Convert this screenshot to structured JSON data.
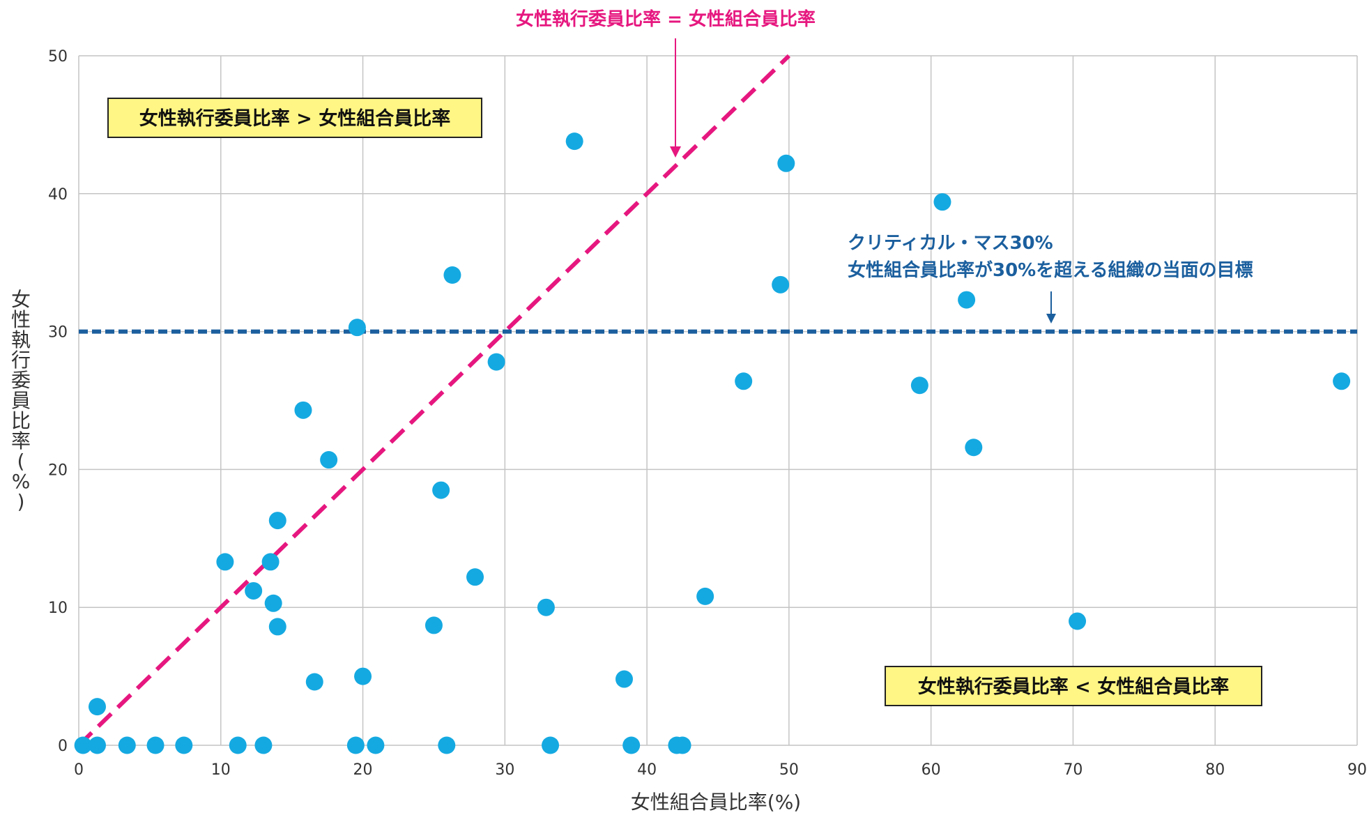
{
  "chart_data": {
    "type": "scatter",
    "title": "",
    "xlabel": "女性組合員比率(%)",
    "ylabel": "女性執行委員比率(%)",
    "xlim": [
      0,
      90
    ],
    "ylim": [
      0,
      50
    ],
    "x_ticks": [
      0,
      10,
      20,
      30,
      40,
      50,
      60,
      70,
      80,
      90
    ],
    "y_ticks": [
      0,
      10,
      20,
      30,
      40,
      50
    ],
    "grid": true,
    "colors": {
      "points": "#15a9e1",
      "diagonal": "#e6177f",
      "critical_mass": "#1b5f9e",
      "box_fill": "#fff685"
    },
    "points": [
      {
        "x": 0.3,
        "y": 0
      },
      {
        "x": 1.3,
        "y": 0
      },
      {
        "x": 1.3,
        "y": 2.8
      },
      {
        "x": 3.4,
        "y": 0
      },
      {
        "x": 5.4,
        "y": 0
      },
      {
        "x": 7.4,
        "y": 0
      },
      {
        "x": 10.3,
        "y": 13.3
      },
      {
        "x": 11.2,
        "y": 0
      },
      {
        "x": 12.3,
        "y": 11.2
      },
      {
        "x": 13.0,
        "y": 0
      },
      {
        "x": 13.5,
        "y": 13.3
      },
      {
        "x": 13.7,
        "y": 10.3
      },
      {
        "x": 14.0,
        "y": 16.3
      },
      {
        "x": 14.0,
        "y": 8.6
      },
      {
        "x": 15.8,
        "y": 24.3
      },
      {
        "x": 16.6,
        "y": 4.6
      },
      {
        "x": 17.6,
        "y": 20.7
      },
      {
        "x": 19.5,
        "y": 0
      },
      {
        "x": 19.6,
        "y": 30.3
      },
      {
        "x": 20.0,
        "y": 5.0
      },
      {
        "x": 20.9,
        "y": 0
      },
      {
        "x": 25.0,
        "y": 8.7
      },
      {
        "x": 25.5,
        "y": 18.5
      },
      {
        "x": 25.9,
        "y": 0
      },
      {
        "x": 26.3,
        "y": 34.1
      },
      {
        "x": 27.9,
        "y": 12.2
      },
      {
        "x": 29.4,
        "y": 27.8
      },
      {
        "x": 32.9,
        "y": 10.0
      },
      {
        "x": 33.2,
        "y": 0
      },
      {
        "x": 34.9,
        "y": 43.8
      },
      {
        "x": 38.4,
        "y": 4.8
      },
      {
        "x": 38.9,
        "y": 0
      },
      {
        "x": 42.1,
        "y": 0
      },
      {
        "x": 42.5,
        "y": 0
      },
      {
        "x": 44.1,
        "y": 10.8
      },
      {
        "x": 46.8,
        "y": 26.4
      },
      {
        "x": 49.4,
        "y": 33.4
      },
      {
        "x": 49.8,
        "y": 42.2
      },
      {
        "x": 59.2,
        "y": 26.1
      },
      {
        "x": 60.8,
        "y": 39.4
      },
      {
        "x": 62.5,
        "y": 32.3
      },
      {
        "x": 63.0,
        "y": 21.6
      },
      {
        "x": 70.3,
        "y": 9.0
      },
      {
        "x": 88.9,
        "y": 26.4
      }
    ],
    "reference_lines": {
      "diagonal": {
        "from": [
          0,
          0
        ],
        "to": [
          50,
          50
        ]
      },
      "critical_mass_y": 30
    },
    "annotations": {
      "diagonal_label": "女性執行委員比率 = 女性組合員比率",
      "critical_mass_line1": "クリティカル・マス30%",
      "critical_mass_line2": "女性組合員比率が30%を超える組織の当面の目標",
      "upper_box": "女性執行委員比率 > 女性組合員比率",
      "lower_box": "女性執行委員比率 < 女性組合員比率"
    }
  }
}
